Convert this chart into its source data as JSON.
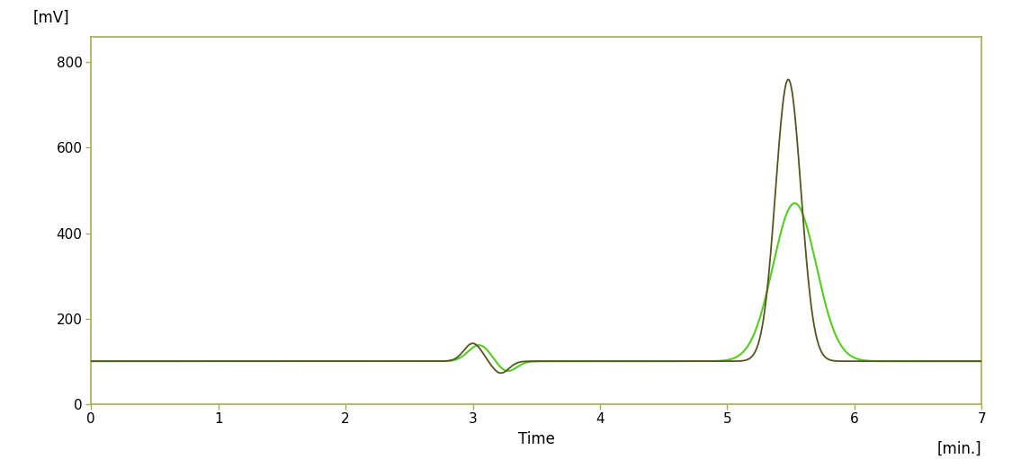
{
  "xlabel": "Time",
  "ylabel": "[mV]",
  "xunit": "[min.]",
  "xlim": [
    0,
    7
  ],
  "ylim": [
    0,
    860
  ],
  "yticks": [
    0,
    200,
    400,
    600,
    800
  ],
  "xticks": [
    0,
    1,
    2,
    3,
    4,
    5,
    6,
    7
  ],
  "baseline": 100,
  "background_color": "#ffffff",
  "border_color": "#aaaa55",
  "line_color_dark": "#555522",
  "line_color_bright": "#55cc22",
  "linewidth_dark": 1.3,
  "linewidth_bright": 1.5,
  "tick_color": "#aaaa55",
  "label_fontsize": 12,
  "tick_fontsize": 11
}
